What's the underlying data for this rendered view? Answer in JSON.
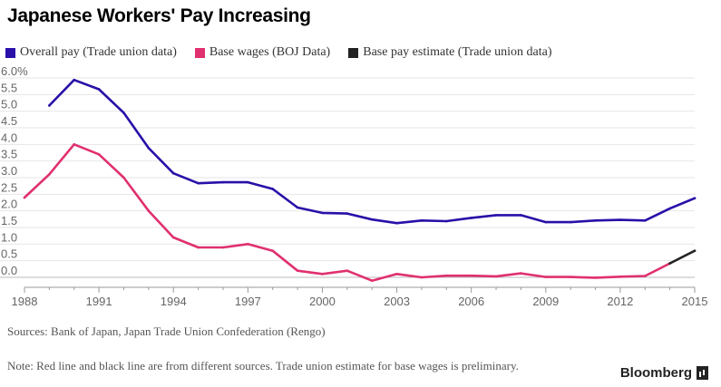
{
  "chart_data": {
    "type": "line",
    "title": "Japanese Workers' Pay Increasing",
    "xlabel": "",
    "ylabel": "",
    "ylim": [
      0,
      6
    ],
    "xlim": [
      1988,
      2015
    ],
    "x_ticks": [
      1988,
      1991,
      1994,
      1997,
      2000,
      2003,
      2006,
      2009,
      2012,
      2015
    ],
    "y_ticks": [
      "0.0",
      "0.5",
      "1.0",
      "1.5",
      "2.0",
      "2.5",
      "3.0",
      "3.5",
      "4.0",
      "4.5",
      "5.0",
      "5.5",
      "6.0%"
    ],
    "y_tick_values": [
      0,
      0.5,
      1.0,
      1.5,
      2.0,
      2.5,
      3.0,
      3.5,
      4.0,
      4.5,
      5.0,
      5.5,
      6.0
    ],
    "legend_position": "top-left",
    "series": [
      {
        "name": "Overall pay (Trade union data)",
        "color": "#2a0fa8",
        "x": [
          1989,
          1990,
          1991,
          1992,
          1993,
          1994,
          1995,
          1996,
          1997,
          1998,
          1999,
          2000,
          2001,
          2002,
          2003,
          2004,
          2005,
          2006,
          2007,
          2008,
          2009,
          2010,
          2011,
          2012,
          2013,
          2014,
          2015
        ],
        "values": [
          5.17,
          5.94,
          5.66,
          4.95,
          3.89,
          3.13,
          2.83,
          2.86,
          2.86,
          2.66,
          2.1,
          1.94,
          1.92,
          1.74,
          1.63,
          1.71,
          1.69,
          1.79,
          1.87,
          1.87,
          1.66,
          1.66,
          1.71,
          1.73,
          1.71,
          2.07,
          2.38
        ]
      },
      {
        "name": "Base wages (BOJ Data)",
        "color": "#e0306f",
        "x": [
          1988,
          1989,
          1990,
          1991,
          1992,
          1993,
          1994,
          1995,
          1996,
          1997,
          1998,
          1999,
          2000,
          2001,
          2002,
          2003,
          2004,
          2005,
          2006,
          2007,
          2008,
          2009,
          2010,
          2011,
          2012,
          2013,
          2014
        ],
        "values": [
          2.4,
          3.1,
          4.0,
          3.7,
          3.0,
          2.0,
          1.2,
          0.9,
          0.9,
          1.0,
          0.8,
          0.2,
          0.1,
          0.2,
          -0.1,
          0.1,
          0.0,
          0.05,
          0.05,
          0.03,
          0.12,
          0.01,
          0.01,
          -0.01,
          0.02,
          0.04,
          0.42
        ]
      },
      {
        "name": "Base pay estimate (Trade union data)",
        "color": "#222222",
        "x": [
          2014,
          2015
        ],
        "values": [
          0.42,
          0.8
        ]
      }
    ],
    "sources": "Sources: Bank of Japan, Japan Trade Union Confederation (Rengo)",
    "note": "Note: Red line and black line are from different sources. Trade union estimate for base wages is preliminary.",
    "brand": "Bloomberg"
  }
}
